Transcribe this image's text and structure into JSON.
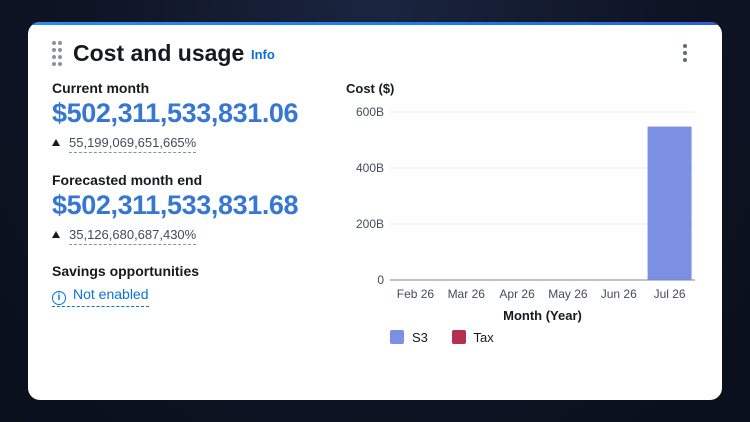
{
  "widget": {
    "title": "Cost and usage",
    "info_label": "Info"
  },
  "current_month": {
    "label": "Current month",
    "value": "$502,311,533,831.06",
    "change_pct": "55,199,069,651,665%"
  },
  "forecast": {
    "label": "Forecasted month end",
    "value": "$502,311,533,831.68",
    "change_pct": "35,126,680,687,430%"
  },
  "savings": {
    "label": "Savings opportunities",
    "status": "Not enabled",
    "status_icon": "info-icon"
  },
  "chart_data": {
    "type": "bar",
    "title": "Cost ($)",
    "xlabel": "Month (Year)",
    "ylabel": "Cost ($)",
    "categories": [
      "Feb 26",
      "Mar 26",
      "Apr 26",
      "May 26",
      "Jun 26",
      "Jul 26"
    ],
    "series": [
      {
        "name": "S3",
        "color": "#7b8fe3",
        "values": [
          0,
          0,
          0,
          0,
          0,
          548000000000
        ]
      },
      {
        "name": "Tax",
        "color": "#b3304f",
        "values": [
          0,
          0,
          0,
          0,
          0,
          0
        ]
      }
    ],
    "y_ticks": [
      {
        "value": 0,
        "label": "0"
      },
      {
        "value": 200000000000,
        "label": "200B"
      },
      {
        "value": 400000000000,
        "label": "400B"
      },
      {
        "value": 600000000000,
        "label": "600B"
      }
    ],
    "ylim": [
      0,
      600000000000
    ],
    "grid": true,
    "legend_position": "bottom-left"
  }
}
